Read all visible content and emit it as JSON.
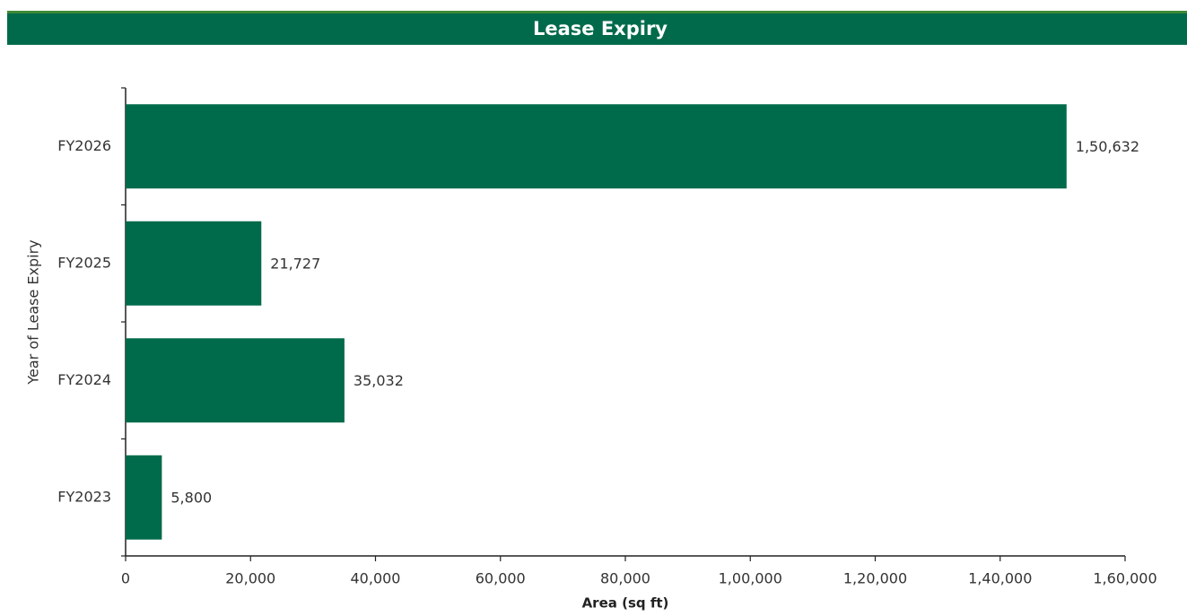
{
  "chart_data": {
    "type": "bar",
    "orientation": "horizontal",
    "title": "Lease Expiry",
    "x_label": "Area (sq ft)",
    "y_label": "Year of Lease Expiry",
    "categories": [
      "FY2026",
      "FY2025",
      "FY2024",
      "FY2023"
    ],
    "values": [
      150632,
      21727,
      35032,
      5800
    ],
    "value_labels": [
      "1,50,632",
      "21,727",
      "35,032",
      "5,800"
    ],
    "color": "#006b4a",
    "xlim": [
      0,
      160000
    ],
    "xticks": [
      0,
      {
        "value": 20000,
        "label": "20,000"
      },
      {
        "value": 40000,
        "label": "40,000"
      },
      {
        "value": 60000,
        "label": "60,000"
      },
      {
        "value": 80000,
        "label": "80,000"
      },
      {
        "value": 100000,
        "label": "1,00,000"
      },
      {
        "value": 120000,
        "label": "1,20,000"
      },
      {
        "value": 140000,
        "label": "1,40,000"
      },
      {
        "value": 160000,
        "label": "1,60,000"
      }
    ],
    "grid": false
  }
}
